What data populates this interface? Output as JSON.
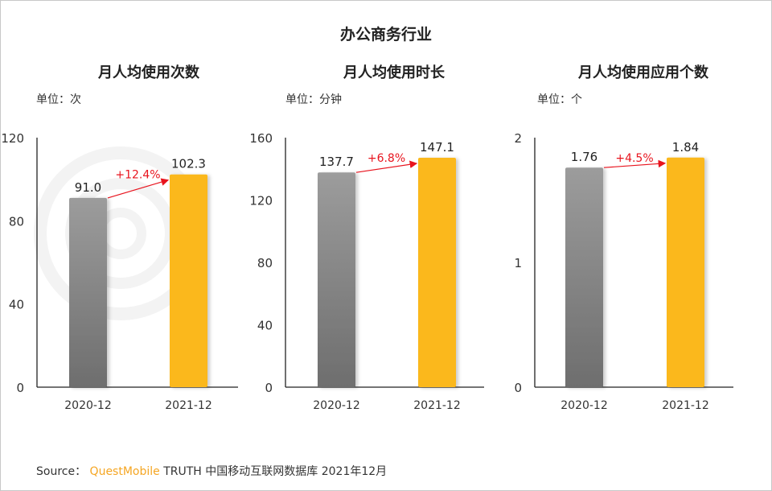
{
  "title": "办公商务行业",
  "watermark": "QUESTMOBILE",
  "source": {
    "label": "Source：",
    "brand": "QuestMobile",
    "text": "TRUTH 中国移动互联网数据库 2021年12月"
  },
  "colors": {
    "bar_2020": "#8a8a8a",
    "bar_2021": "#fbb81a",
    "growth": "#e8141e"
  },
  "chart_data": [
    {
      "type": "bar",
      "title": "月人均使用次数",
      "unit": "单位：次",
      "categories": [
        "2020-12",
        "2021-12"
      ],
      "values": [
        91.0,
        102.3
      ],
      "labels": [
        "91.0",
        "102.3"
      ],
      "growth": "+12.4%",
      "ylim": [
        0,
        120
      ],
      "yticks": [
        0,
        40,
        80,
        120
      ],
      "grid": false
    },
    {
      "type": "bar",
      "title": "月人均使用时长",
      "unit": "单位：分钟",
      "categories": [
        "2020-12",
        "2021-12"
      ],
      "values": [
        137.7,
        147.1
      ],
      "labels": [
        "137.7",
        "147.1"
      ],
      "growth": "+6.8%",
      "ylim": [
        0,
        160
      ],
      "yticks": [
        0,
        40,
        80,
        120,
        160
      ],
      "grid": false
    },
    {
      "type": "bar",
      "title": "月人均使用应用个数",
      "unit": "单位：个",
      "categories": [
        "2020-12",
        "2021-12"
      ],
      "values": [
        1.76,
        1.84
      ],
      "labels": [
        "1.76",
        "1.84"
      ],
      "growth": "+4.5%",
      "ylim": [
        0,
        2
      ],
      "yticks": [
        0,
        1,
        2
      ],
      "grid": false
    }
  ]
}
